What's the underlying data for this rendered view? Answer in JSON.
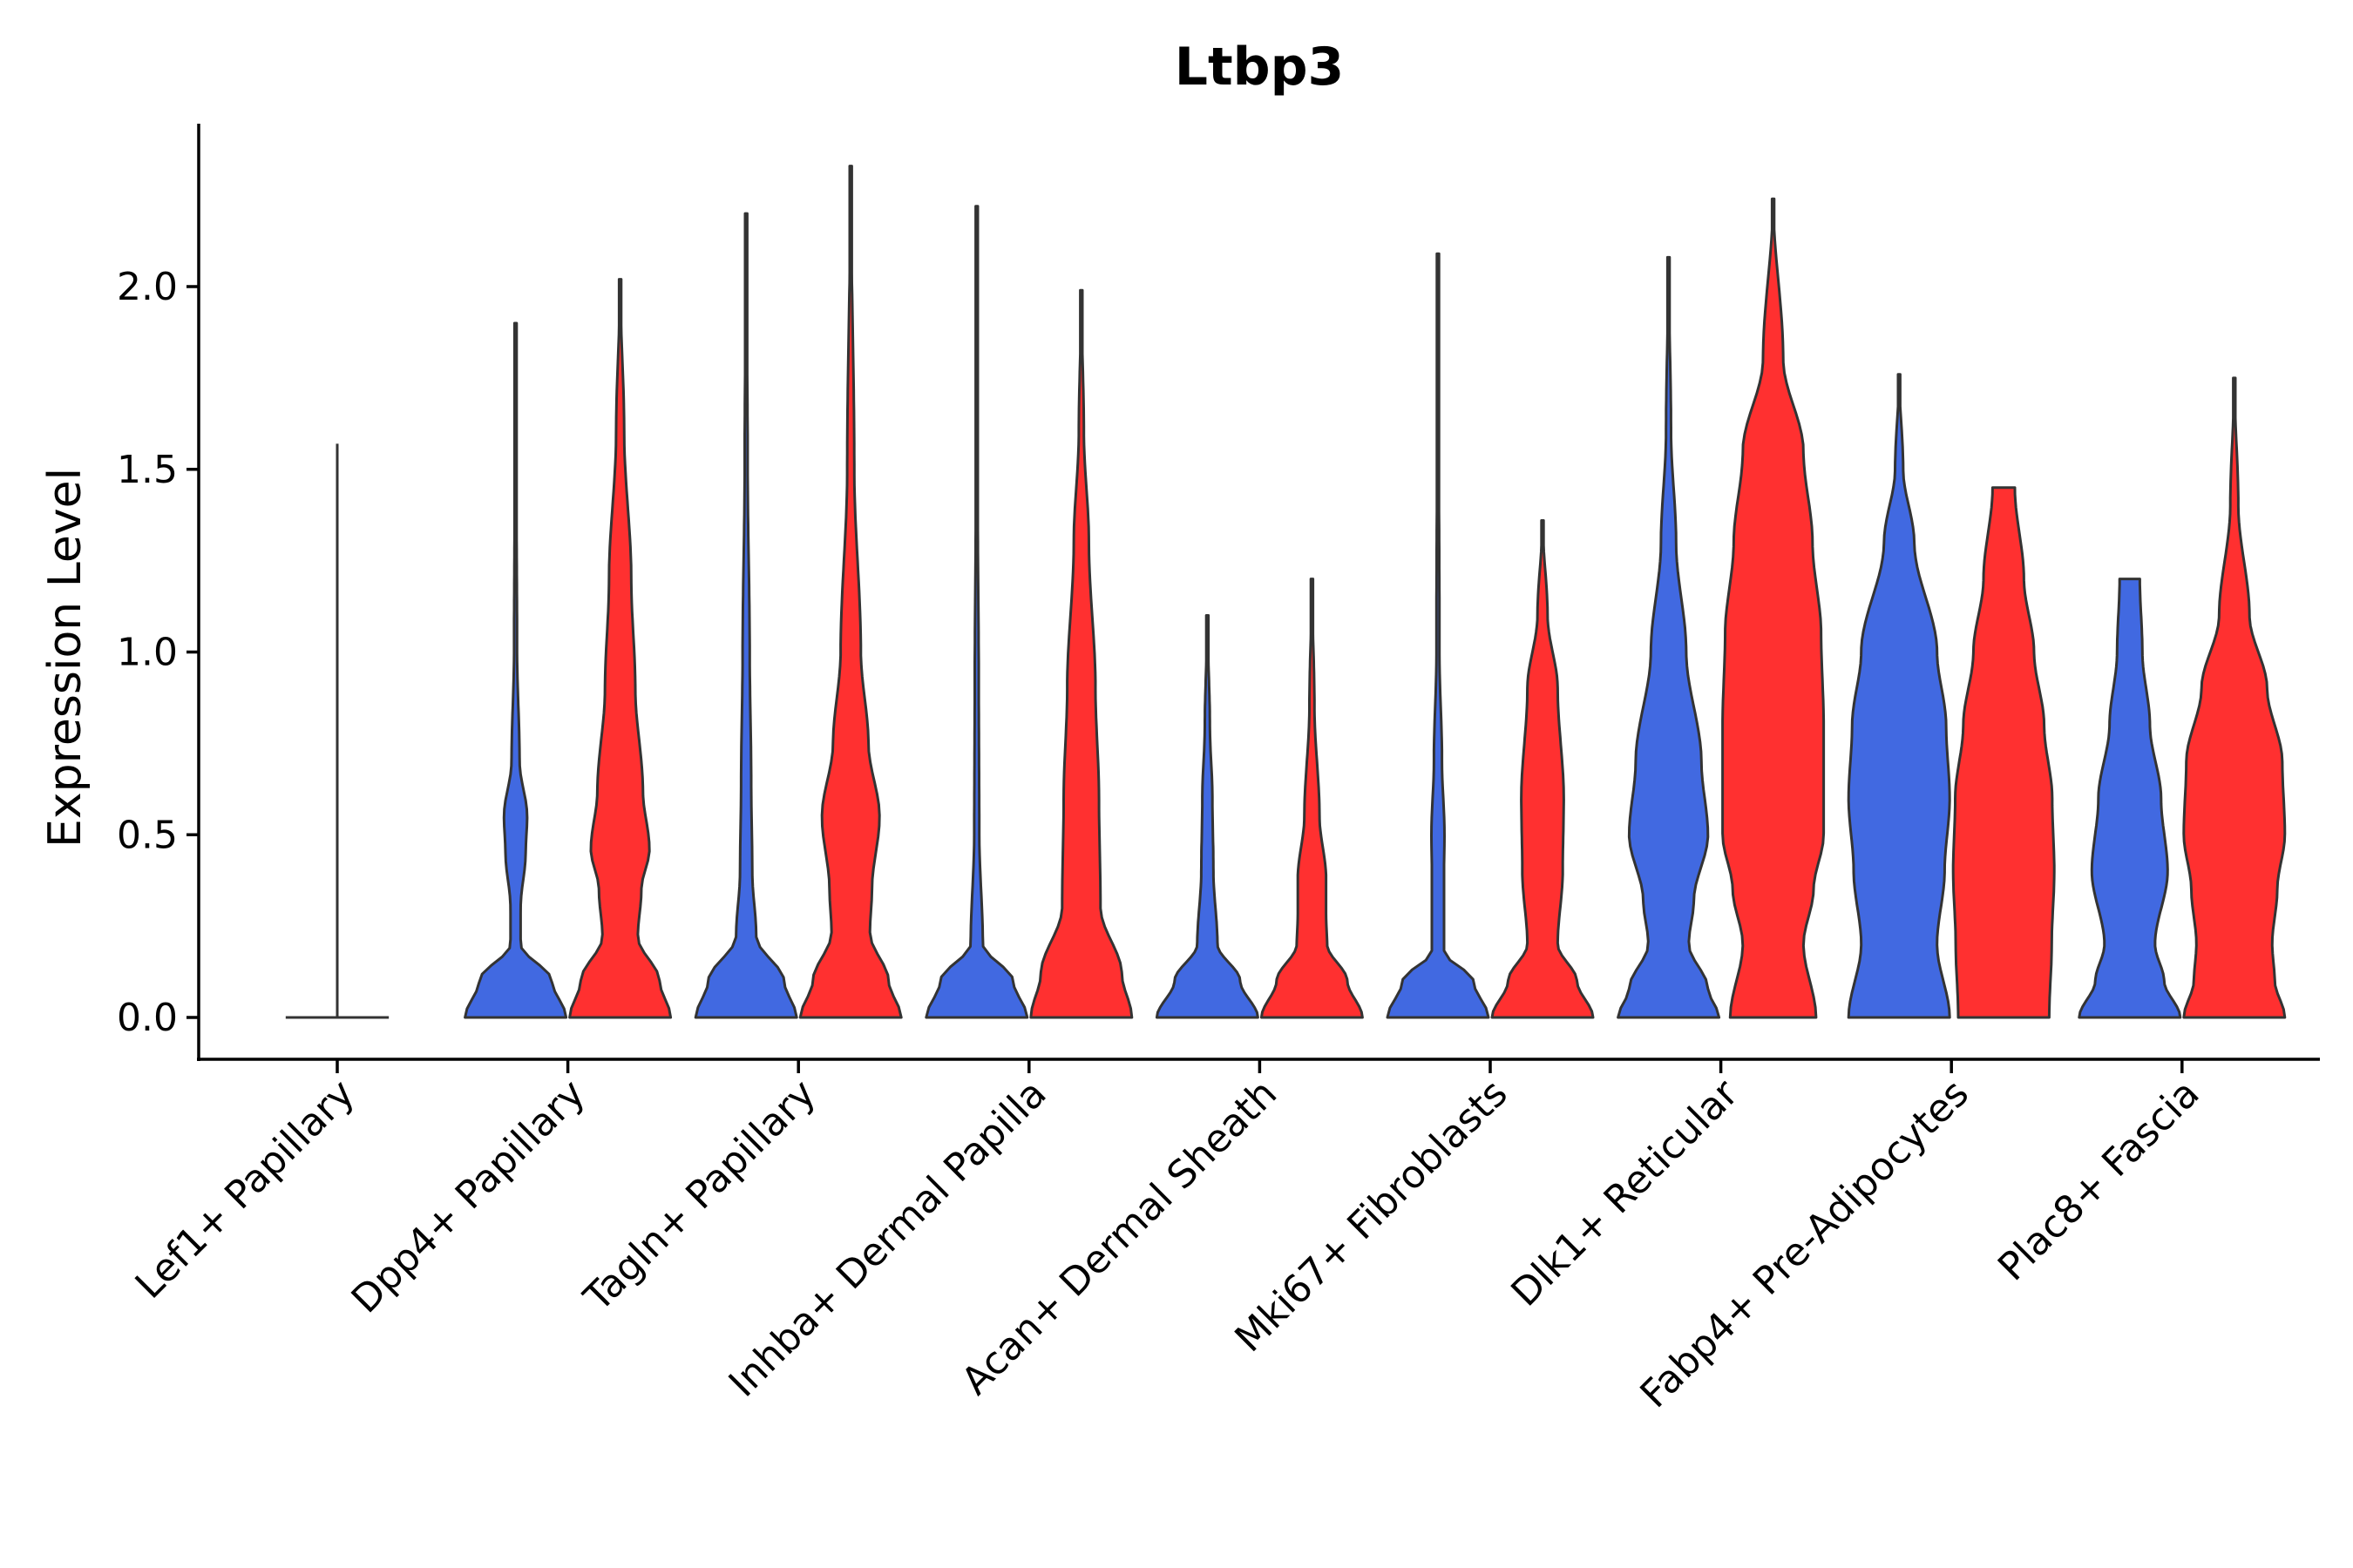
{
  "chart_data": {
    "type": "violin",
    "title": "Ltbp3",
    "xlabel": "",
    "ylabel": "Expression Level",
    "ylim": [
      -0.12,
      2.45
    ],
    "yticks": [
      "0.0",
      "0.5",
      "1.0",
      "1.5",
      "2.0"
    ],
    "ytick_values": [
      0,
      0.5,
      1.0,
      1.5,
      2.0
    ],
    "grid": false,
    "series": [
      {
        "name": "group-1",
        "color": "#4169E1"
      },
      {
        "name": "group-2",
        "color": "#FF3030"
      }
    ],
    "categories": [
      "Lef1+ Papillary",
      "Dpp4+ Papillary",
      "Tagln+ Papillary",
      "Inhba+ Dermal Papilla",
      "Acan+ Dermal Sheath",
      "Mki67+ Fibroblasts",
      "Dlk1+ Reticular",
      "Fabp4+ Pre-Adipocytes",
      "Plac8+ Fascia"
    ],
    "violins": [
      {
        "category": "Lef1+ Papillary",
        "group": "group-1",
        "max": 1.57,
        "profile": [
          [
            0,
            1.0
          ],
          [
            0.03,
            0.02
          ],
          [
            1.57,
            0.005
          ]
        ],
        "flat": true
      },
      {
        "category": "Dpp4+ Papillary",
        "group": "group-1",
        "max": 1.9,
        "profile": [
          [
            0,
            1.0
          ],
          [
            0.1,
            0.72
          ],
          [
            0.2,
            0.1
          ],
          [
            0.3,
            0.1
          ],
          [
            0.45,
            0.2
          ],
          [
            0.55,
            0.23
          ],
          [
            0.7,
            0.08
          ],
          [
            1.0,
            0.03
          ],
          [
            1.4,
            0.02
          ],
          [
            1.9,
            0.0
          ]
        ]
      },
      {
        "category": "Dpp4+ Papillary",
        "group": "group-2",
        "max": 2.02,
        "profile": [
          [
            0,
            1.0
          ],
          [
            0.1,
            0.78
          ],
          [
            0.22,
            0.35
          ],
          [
            0.35,
            0.42
          ],
          [
            0.46,
            0.58
          ],
          [
            0.62,
            0.45
          ],
          [
            0.9,
            0.3
          ],
          [
            1.2,
            0.22
          ],
          [
            1.6,
            0.08
          ],
          [
            2.02,
            0.0
          ]
        ]
      },
      {
        "category": "Tagln+ Papillary",
        "group": "group-1",
        "max": 2.2,
        "profile": [
          [
            0,
            1.0
          ],
          [
            0.1,
            0.75
          ],
          [
            0.22,
            0.2
          ],
          [
            0.4,
            0.12
          ],
          [
            0.65,
            0.1
          ],
          [
            1.0,
            0.07
          ],
          [
            1.5,
            0.03
          ],
          [
            2.2,
            0.0
          ]
        ]
      },
      {
        "category": "Tagln+ Papillary",
        "group": "group-2",
        "max": 2.33,
        "profile": [
          [
            0,
            1.0
          ],
          [
            0.1,
            0.75
          ],
          [
            0.23,
            0.38
          ],
          [
            0.35,
            0.42
          ],
          [
            0.55,
            0.57
          ],
          [
            0.75,
            0.35
          ],
          [
            1.0,
            0.2
          ],
          [
            1.5,
            0.07
          ],
          [
            2.33,
            0.0
          ]
        ]
      },
      {
        "category": "Inhba+ Dermal Papilla",
        "group": "group-1",
        "max": 2.22,
        "profile": [
          [
            0,
            1.0
          ],
          [
            0.1,
            0.72
          ],
          [
            0.2,
            0.12
          ],
          [
            0.5,
            0.05
          ],
          [
            0.9,
            0.04
          ],
          [
            1.4,
            0.02
          ],
          [
            2.22,
            0.0
          ]
        ]
      },
      {
        "category": "Inhba+ Dermal Papilla",
        "group": "group-2",
        "max": 1.99,
        "profile": [
          [
            0,
            1.0
          ],
          [
            0.12,
            0.8
          ],
          [
            0.3,
            0.38
          ],
          [
            0.6,
            0.35
          ],
          [
            0.9,
            0.28
          ],
          [
            1.3,
            0.15
          ],
          [
            1.6,
            0.05
          ],
          [
            1.99,
            0.0
          ]
        ]
      },
      {
        "category": "Acan+ Dermal Sheath",
        "group": "group-1",
        "max": 1.1,
        "profile": [
          [
            0,
            1.0
          ],
          [
            0.1,
            0.65
          ],
          [
            0.2,
            0.2
          ],
          [
            0.4,
            0.12
          ],
          [
            0.6,
            0.1
          ],
          [
            0.8,
            0.05
          ],
          [
            1.1,
            0.0
          ]
        ]
      },
      {
        "category": "Acan+ Dermal Sheath",
        "group": "group-2",
        "max": 1.2,
        "profile": [
          [
            0,
            1.0
          ],
          [
            0.1,
            0.7
          ],
          [
            0.2,
            0.3
          ],
          [
            0.28,
            0.28
          ],
          [
            0.38,
            0.28
          ],
          [
            0.55,
            0.15
          ],
          [
            0.85,
            0.05
          ],
          [
            1.2,
            0.0
          ]
        ]
      },
      {
        "category": "Mki67+ Fibroblasts",
        "group": "group-1",
        "max": 2.09,
        "profile": [
          [
            0,
            1.0
          ],
          [
            0.1,
            0.7
          ],
          [
            0.18,
            0.12
          ],
          [
            0.4,
            0.12
          ],
          [
            0.5,
            0.13
          ],
          [
            0.7,
            0.08
          ],
          [
            1.0,
            0.03
          ],
          [
            2.09,
            0.0
          ]
        ]
      },
      {
        "category": "Mki67+ Fibroblasts",
        "group": "group-2",
        "max": 1.36,
        "profile": [
          [
            0,
            1.0
          ],
          [
            0.1,
            0.68
          ],
          [
            0.2,
            0.3
          ],
          [
            0.4,
            0.4
          ],
          [
            0.6,
            0.42
          ],
          [
            0.9,
            0.3
          ],
          [
            1.1,
            0.1
          ],
          [
            1.36,
            0.0
          ]
        ]
      },
      {
        "category": "Dlk1+ Reticular",
        "group": "group-1",
        "max": 2.08,
        "profile": [
          [
            0,
            1.0
          ],
          [
            0.08,
            0.78
          ],
          [
            0.2,
            0.4
          ],
          [
            0.32,
            0.5
          ],
          [
            0.5,
            0.78
          ],
          [
            0.7,
            0.65
          ],
          [
            1.0,
            0.35
          ],
          [
            1.3,
            0.15
          ],
          [
            1.6,
            0.05
          ],
          [
            2.08,
            0.0
          ]
        ]
      },
      {
        "category": "Dlk1+ Reticular",
        "group": "group-2",
        "max": 2.24,
        "profile": [
          [
            0,
            0.85
          ],
          [
            0.2,
            0.6
          ],
          [
            0.35,
            0.8
          ],
          [
            0.5,
            1.0
          ],
          [
            0.8,
            1.0
          ],
          [
            1.05,
            0.95
          ],
          [
            1.3,
            0.78
          ],
          [
            1.55,
            0.6
          ],
          [
            1.8,
            0.2
          ],
          [
            2.24,
            0.0
          ]
        ]
      },
      {
        "category": "Fabp4+ Pre-Adipocytes",
        "group": "group-1",
        "max": 1.76,
        "profile": [
          [
            0,
            1.0
          ],
          [
            0.2,
            0.75
          ],
          [
            0.4,
            0.9
          ],
          [
            0.6,
            1.0
          ],
          [
            0.8,
            0.93
          ],
          [
            1.0,
            0.75
          ],
          [
            1.3,
            0.3
          ],
          [
            1.5,
            0.08
          ],
          [
            1.76,
            0.0
          ]
        ]
      },
      {
        "category": "Fabp4+ Pre-Adipocytes",
        "group": "group-2",
        "max": 1.45,
        "profile": [
          [
            0,
            0.9
          ],
          [
            0.2,
            0.95
          ],
          [
            0.4,
            1.0
          ],
          [
            0.6,
            0.96
          ],
          [
            0.8,
            0.8
          ],
          [
            1.0,
            0.6
          ],
          [
            1.2,
            0.4
          ],
          [
            1.45,
            0.22
          ]
        ]
      },
      {
        "category": "Plac8+ Fascia",
        "group": "group-1",
        "max": 1.2,
        "profile": [
          [
            0,
            1.0
          ],
          [
            0.1,
            0.68
          ],
          [
            0.2,
            0.5
          ],
          [
            0.4,
            0.75
          ],
          [
            0.6,
            0.62
          ],
          [
            0.8,
            0.4
          ],
          [
            1.0,
            0.25
          ],
          [
            1.2,
            0.2
          ]
        ]
      },
      {
        "category": "Plac8+ Fascia",
        "group": "group-2",
        "max": 1.75,
        "profile": [
          [
            0,
            1.0
          ],
          [
            0.1,
            0.8
          ],
          [
            0.2,
            0.75
          ],
          [
            0.35,
            0.85
          ],
          [
            0.5,
            1.0
          ],
          [
            0.7,
            0.95
          ],
          [
            0.9,
            0.65
          ],
          [
            1.1,
            0.3
          ],
          [
            1.4,
            0.08
          ],
          [
            1.75,
            0.0
          ]
        ]
      }
    ]
  }
}
